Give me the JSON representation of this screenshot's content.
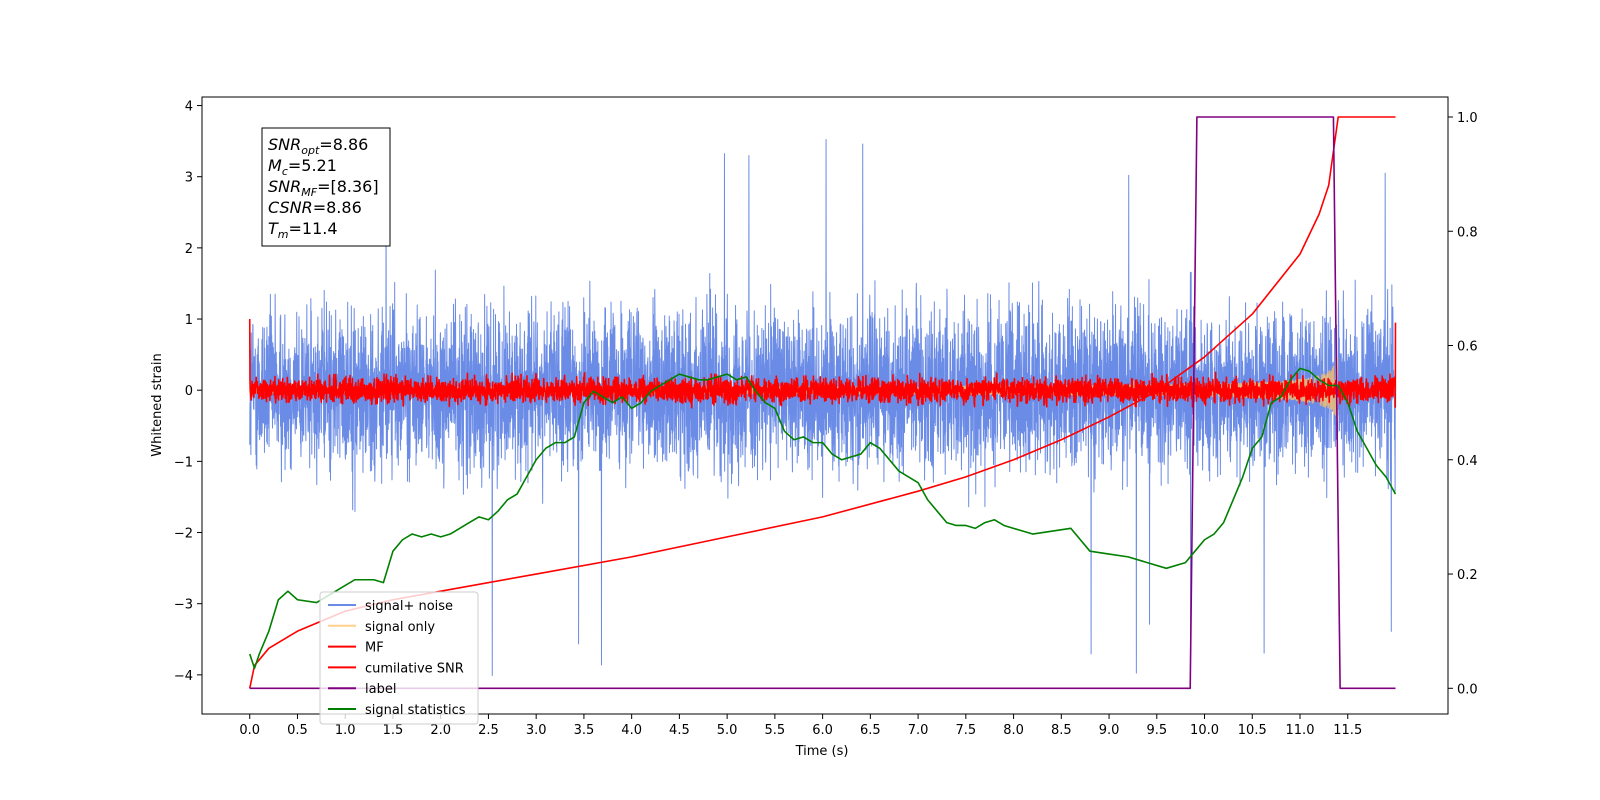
{
  "chart_data": {
    "type": "line",
    "title": "",
    "xlabel": "Time (s)",
    "ylabel": "Whitened strain",
    "ylabel_right": "",
    "xlim": [
      -0.5,
      12.55
    ],
    "ylim": [
      -4.55,
      4.12
    ],
    "ylim_right": [
      -0.045,
      1.035
    ],
    "x_ticks": [
      0.0,
      0.5,
      1.0,
      1.5,
      2.0,
      2.5,
      3.0,
      3.5,
      4.0,
      4.5,
      5.0,
      5.5,
      6.0,
      6.5,
      7.0,
      7.5,
      8.0,
      8.5,
      9.0,
      9.5,
      10.0,
      10.5,
      11.0,
      11.5
    ],
    "x_tick_labels": [
      "0.0",
      "0.5",
      "1.0",
      "1.5",
      "2.0",
      "2.5",
      "3.0",
      "3.5",
      "4.0",
      "4.5",
      "5.0",
      "5.5",
      "6.0",
      "6.5",
      "7.0",
      "7.5",
      "8.0",
      "8.5",
      "9.0",
      "9.5",
      "10.0",
      "10.5",
      "11.0",
      "11.5"
    ],
    "y_ticks": [
      4,
      3,
      2,
      1,
      0,
      -1,
      -2,
      -3,
      -4
    ],
    "y_tick_labels": [
      "4",
      "3",
      "2",
      "1",
      "0",
      "−1",
      "−2",
      "−3",
      "−4"
    ],
    "y_right_ticks": [
      1.0,
      0.8,
      0.6,
      0.4,
      0.2,
      0.0
    ],
    "y_right_tick_labels": [
      "1.0",
      "0.8",
      "0.6",
      "0.4",
      "0.2",
      "0.0"
    ],
    "legend_position": "lower-left",
    "series": [
      {
        "name": "signal+ noise",
        "axis": "left",
        "color": "#6b8ce6",
        "kind": "noise",
        "x_range": [
          0.0,
          12.0
        ],
        "center": 0.0,
        "spread": 0.8,
        "extreme_range": [
          -4.05,
          3.72
        ]
      },
      {
        "name": "signal only",
        "axis": "left",
        "color": "#ffc266",
        "kind": "chirp",
        "x_range": [
          0.0,
          11.4
        ],
        "amplitude_start": 0.02,
        "amplitude_peak": 0.5,
        "peak_time": 11.4
      },
      {
        "name": "MF",
        "axis": "left",
        "color": "#ff0000",
        "kind": "noise",
        "x_range": [
          0.0,
          12.0
        ],
        "center": 0.0,
        "spread": 0.12,
        "start_value": 1.0,
        "end_value": 0.95
      },
      {
        "name": "cumilative SNR",
        "axis": "right",
        "color": "#ff0000",
        "x": [
          0.0,
          0.05,
          0.2,
          0.5,
          1.0,
          1.5,
          2.0,
          3.0,
          4.0,
          5.0,
          6.0,
          7.0,
          7.5,
          8.0,
          8.5,
          9.0,
          9.5,
          10.0,
          10.5,
          11.0,
          11.2,
          11.3,
          11.4,
          12.0
        ],
        "values": [
          0.0,
          0.04,
          0.07,
          0.1,
          0.135,
          0.155,
          0.17,
          0.2,
          0.23,
          0.265,
          0.3,
          0.345,
          0.37,
          0.4,
          0.435,
          0.475,
          0.52,
          0.58,
          0.655,
          0.76,
          0.83,
          0.88,
          1.0,
          1.0
        ]
      },
      {
        "name": "label",
        "axis": "right",
        "color": "#800080",
        "x": [
          0.0,
          9.85,
          9.92,
          11.35,
          11.42,
          12.0
        ],
        "values": [
          0.0,
          0.0,
          1.0,
          1.0,
          0.0,
          0.0
        ]
      },
      {
        "name": "signal statistics",
        "axis": "right",
        "color": "#008000",
        "x": [
          0.0,
          0.05,
          0.1,
          0.2,
          0.3,
          0.4,
          0.5,
          0.7,
          0.9,
          1.0,
          1.1,
          1.2,
          1.3,
          1.4,
          1.5,
          1.6,
          1.7,
          1.8,
          1.9,
          2.0,
          2.1,
          2.2,
          2.3,
          2.4,
          2.5,
          2.6,
          2.7,
          2.8,
          2.9,
          3.0,
          3.1,
          3.2,
          3.3,
          3.4,
          3.5,
          3.6,
          3.7,
          3.8,
          3.9,
          4.0,
          4.1,
          4.2,
          4.3,
          4.4,
          4.5,
          4.6,
          4.7,
          4.8,
          4.9,
          5.0,
          5.1,
          5.2,
          5.3,
          5.4,
          5.5,
          5.6,
          5.7,
          5.8,
          5.9,
          6.0,
          6.1,
          6.2,
          6.3,
          6.4,
          6.5,
          6.6,
          6.7,
          6.8,
          6.9,
          7.0,
          7.1,
          7.2,
          7.3,
          7.4,
          7.5,
          7.6,
          7.7,
          7.8,
          7.9,
          8.0,
          8.2,
          8.4,
          8.6,
          8.8,
          9.0,
          9.2,
          9.4,
          9.6,
          9.8,
          9.9,
          10.0,
          10.1,
          10.2,
          10.3,
          10.4,
          10.5,
          10.6,
          10.7,
          10.8,
          10.9,
          11.0,
          11.1,
          11.2,
          11.3,
          11.4,
          11.5,
          11.6,
          11.7,
          11.8,
          11.9,
          12.0
        ],
        "values": [
          0.06,
          0.035,
          0.06,
          0.1,
          0.155,
          0.17,
          0.155,
          0.15,
          0.17,
          0.18,
          0.19,
          0.19,
          0.19,
          0.185,
          0.24,
          0.26,
          0.27,
          0.265,
          0.27,
          0.265,
          0.27,
          0.28,
          0.29,
          0.3,
          0.295,
          0.31,
          0.33,
          0.34,
          0.37,
          0.4,
          0.42,
          0.43,
          0.43,
          0.44,
          0.5,
          0.52,
          0.51,
          0.5,
          0.51,
          0.49,
          0.5,
          0.52,
          0.53,
          0.54,
          0.55,
          0.545,
          0.54,
          0.54,
          0.545,
          0.55,
          0.54,
          0.545,
          0.52,
          0.5,
          0.49,
          0.45,
          0.435,
          0.44,
          0.43,
          0.43,
          0.41,
          0.4,
          0.405,
          0.41,
          0.43,
          0.42,
          0.4,
          0.38,
          0.37,
          0.36,
          0.33,
          0.31,
          0.29,
          0.285,
          0.285,
          0.28,
          0.29,
          0.295,
          0.285,
          0.28,
          0.27,
          0.275,
          0.28,
          0.24,
          0.235,
          0.23,
          0.22,
          0.21,
          0.22,
          0.24,
          0.26,
          0.27,
          0.29,
          0.33,
          0.37,
          0.42,
          0.44,
          0.5,
          0.51,
          0.54,
          0.56,
          0.555,
          0.54,
          0.53,
          0.53,
          0.5,
          0.45,
          0.42,
          0.39,
          0.37,
          0.34
        ]
      }
    ],
    "annotation": {
      "lines": [
        {
          "name": "SNR",
          "sub": "opt",
          "value": "=8.86"
        },
        {
          "name": "M",
          "sub": "c",
          "value": "=5.21"
        },
        {
          "name": "SNR",
          "sub": "MF",
          "value": "=[8.36]"
        },
        {
          "name": "CSNR",
          "sub": "",
          "value": "=8.86"
        },
        {
          "name": "T",
          "sub": "m",
          "value": "=11.4"
        }
      ]
    }
  }
}
